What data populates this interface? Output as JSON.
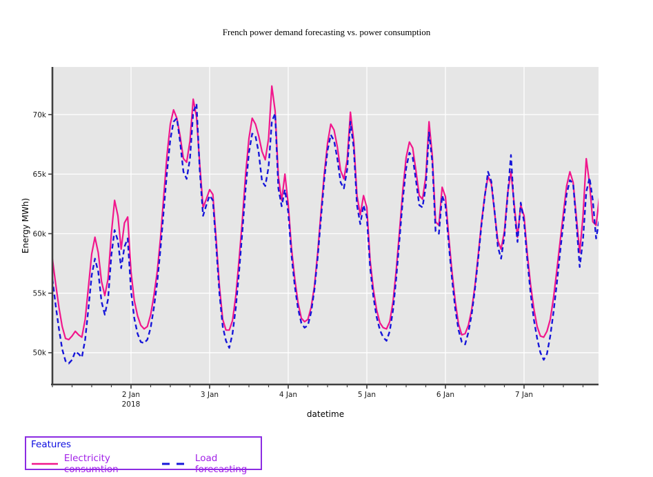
{
  "title": "French power demand forecasting vs. power consumption",
  "axes": {
    "x_label": "datetime",
    "y_label": "Energy MWh)",
    "x_range_hours": [
      0,
      166.74
    ],
    "y_range": [
      47.33,
      74.0
    ],
    "x_ticks": [
      {
        "hour": 24,
        "label": "2 Jan",
        "sublabel": "2018"
      },
      {
        "hour": 48,
        "label": "3 Jan",
        "sublabel": ""
      },
      {
        "hour": 72,
        "label": "4 Jan",
        "sublabel": ""
      },
      {
        "hour": 96,
        "label": "5 Jan",
        "sublabel": ""
      },
      {
        "hour": 120,
        "label": "6 Jan",
        "sublabel": ""
      },
      {
        "hour": 144,
        "label": "7 Jan",
        "sublabel": ""
      }
    ],
    "x_minor_tick_every_hours": 6,
    "y_ticks": [
      {
        "value": 50,
        "label": "50k"
      },
      {
        "value": 55,
        "label": "55k"
      },
      {
        "value": 60,
        "label": "60k"
      },
      {
        "value": 65,
        "label": "65k"
      },
      {
        "value": 70,
        "label": "70k"
      }
    ]
  },
  "legend": {
    "title": "Features",
    "items": [
      {
        "label": "Electricity consumtion",
        "color": "#f1168c",
        "dash": "solid"
      },
      {
        "label": "Load forecasting",
        "color": "#1616d9",
        "dash": "dashed"
      }
    ]
  },
  "colors": {
    "panel_bg": "#e6e6e6",
    "grid": "#ffffff",
    "spine": "#3f3f3f",
    "tick_label": "#1a1a1a",
    "axis_label": "#000000",
    "consumption_line": "#f1168c",
    "forecast_line": "#1616d9",
    "legend_border": "#8b2be2",
    "legend_title": "#0b0be0",
    "legend_text": "#a11ee8"
  },
  "chart_data": {
    "type": "line",
    "title": "French power demand forecasting vs. power consumption",
    "xlabel": "datetime",
    "ylabel": "Energy MWh)",
    "x_start": "2018-01-01 00:00",
    "x_freq": "1 hour",
    "y_unit": "thousand MWh (k)",
    "ylim": [
      47.33,
      74.0
    ],
    "grid": true,
    "legend_position": "outside bottom-left",
    "series": [
      {
        "name": "Electricity consumtion",
        "style": "solid",
        "color": "#f1168c",
        "values": [
          57.9,
          55.8,
          53.8,
          52.2,
          51.2,
          51.1,
          51.4,
          51.8,
          51.5,
          51.3,
          52.8,
          55.5,
          58.3,
          59.7,
          58.4,
          56.0,
          54.8,
          56.2,
          60.0,
          62.8,
          61.5,
          58.7,
          60.9,
          61.4,
          56.8,
          54.4,
          53.1,
          52.3,
          52.0,
          52.2,
          53.2,
          54.8,
          56.8,
          59.6,
          63.2,
          66.6,
          69.2,
          70.4,
          69.7,
          68.2,
          66.3,
          66.0,
          67.8,
          71.3,
          69.8,
          65.8,
          62.2,
          62.9,
          63.7,
          63.3,
          59.5,
          55.6,
          52.8,
          51.9,
          51.9,
          52.7,
          54.8,
          57.8,
          61.2,
          65.0,
          68.0,
          69.7,
          69.2,
          68.2,
          66.9,
          66.2,
          68.0,
          72.4,
          70.3,
          64.8,
          62.8,
          65.0,
          62.5,
          58.8,
          56.2,
          54.2,
          52.9,
          52.6,
          52.8,
          53.8,
          55.6,
          58.4,
          61.8,
          65.0,
          67.6,
          69.2,
          68.7,
          67.3,
          65.3,
          64.6,
          66.2,
          70.2,
          67.8,
          63.2,
          61.6,
          63.2,
          62.2,
          57.8,
          55.3,
          53.6,
          52.5,
          52.1,
          52.0,
          52.6,
          54.3,
          57.0,
          60.3,
          63.7,
          66.4,
          67.7,
          67.2,
          65.3,
          63.2,
          62.9,
          64.8,
          69.4,
          66.5,
          61.0,
          60.7,
          63.9,
          63.1,
          59.8,
          56.8,
          54.3,
          52.4,
          51.5,
          51.6,
          52.3,
          53.6,
          55.6,
          58.2,
          60.9,
          63.2,
          64.8,
          64.2,
          61.8,
          59.4,
          58.7,
          60.2,
          63.4,
          65.2,
          62.5,
          59.7,
          62.4,
          61.5,
          58.3,
          55.7,
          53.7,
          52.2,
          51.4,
          51.3,
          51.8,
          52.8,
          54.6,
          56.9,
          59.3,
          61.7,
          64.0,
          65.2,
          64.3,
          61.3,
          58.4,
          61.5,
          66.3,
          64.2,
          61.0,
          60.7,
          63.1
        ]
      },
      {
        "name": "Load forecasting",
        "style": "dashed",
        "color": "#1616d9",
        "values": [
          56.2,
          54.0,
          52.0,
          50.3,
          49.3,
          49.1,
          49.4,
          50.1,
          49.9,
          49.6,
          51.1,
          53.7,
          56.5,
          57.9,
          56.8,
          54.3,
          53.2,
          54.5,
          58.2,
          60.3,
          59.4,
          57.1,
          58.9,
          59.6,
          55.2,
          52.9,
          51.6,
          50.9,
          50.8,
          51.1,
          52.1,
          53.8,
          55.9,
          58.7,
          62.0,
          65.2,
          67.9,
          69.4,
          69.7,
          67.7,
          65.2,
          64.6,
          66.3,
          70.2,
          70.9,
          65.3,
          61.5,
          62.4,
          63.2,
          62.8,
          59.0,
          55.0,
          52.2,
          51.0,
          50.4,
          51.6,
          53.8,
          56.8,
          60.2,
          63.8,
          66.8,
          68.4,
          68.2,
          66.8,
          64.4,
          64.0,
          65.6,
          69.4,
          70.1,
          63.8,
          62.3,
          63.7,
          61.8,
          58.2,
          55.6,
          53.7,
          52.5,
          52.1,
          52.3,
          53.4,
          55.3,
          58.0,
          61.3,
          64.5,
          67.0,
          68.3,
          67.8,
          66.3,
          64.3,
          63.8,
          65.4,
          69.4,
          67.2,
          62.4,
          60.8,
          62.4,
          61.4,
          57.2,
          54.7,
          53.0,
          51.9,
          51.3,
          51.0,
          51.8,
          53.6,
          56.3,
          59.6,
          62.9,
          65.5,
          66.8,
          66.4,
          64.5,
          62.4,
          62.2,
          64.0,
          68.5,
          66.0,
          60.2,
          60.0,
          63.2,
          62.4,
          59.2,
          56.2,
          53.7,
          51.9,
          50.9,
          50.7,
          51.7,
          53.2,
          55.3,
          57.9,
          60.7,
          63.1,
          65.2,
          64.4,
          61.9,
          58.9,
          57.9,
          59.8,
          63.2,
          66.6,
          62.0,
          59.3,
          62.6,
          61.0,
          57.8,
          55.0,
          52.8,
          51.2,
          50.0,
          49.4,
          49.9,
          51.4,
          53.4,
          55.8,
          58.4,
          60.9,
          63.3,
          64.5,
          64.2,
          60.8,
          57.2,
          59.5,
          63.5,
          64.7,
          62.8,
          59.6,
          61.2
        ]
      }
    ]
  }
}
